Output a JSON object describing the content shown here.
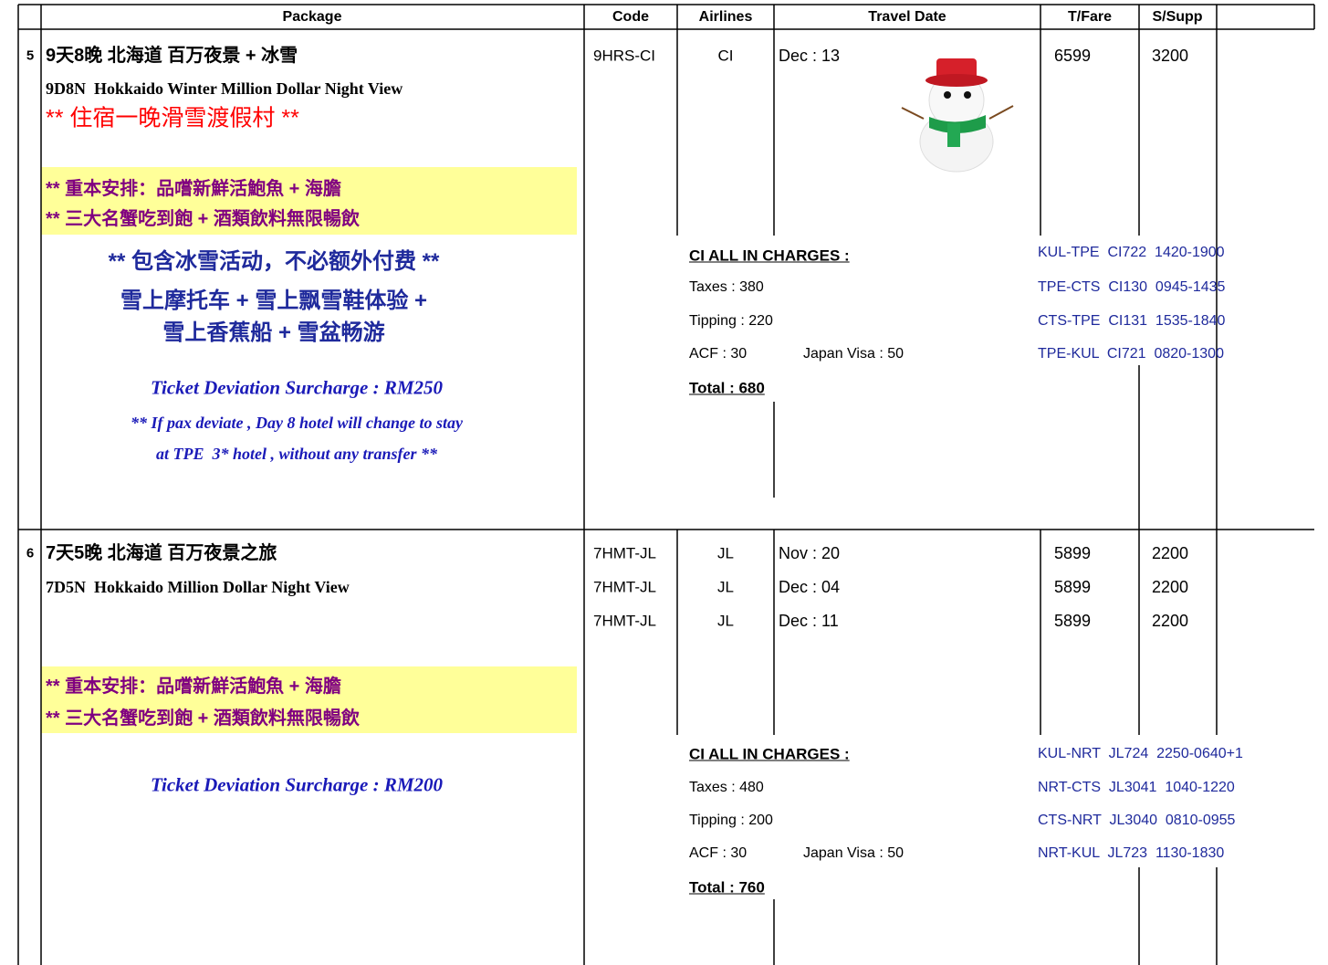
{
  "table": {
    "header": [
      "Package",
      "Code",
      "Airlines",
      "Travel Date",
      "T/Fare",
      "S/Supp"
    ],
    "rows": [
      {
        "no": "5",
        "title_cn": "9天8晚 北海道 百万夜景 + 冰雪",
        "title_en": "9D8N  Hokkaido Winter Million Dollar Night View",
        "highlight": "** 住宿一晚滑雪渡假村 **",
        "special": [
          "** 重本安排：品嚐新鮮活鮑魚 + 海膽",
          "** 三大名蟹吃到飽 + 酒類飲料無限暢飲"
        ],
        "activities": [
          "** 包含冰雪活动，不必额外付费 **",
          "雪上摩托车 + 雪上飘雪鞋体验 +",
          "雪上香蕉船 + 雪盆畅游"
        ],
        "surcharge": "Ticket Deviation Surcharge : RM250",
        "deviation_note": [
          "** If pax deviate , Day 8 hotel will change to stay",
          "at TPE  3* hotel , without any transfer **"
        ],
        "departures": [
          {
            "code": "9HRS-CI",
            "airline": "CI",
            "date": "Dec : 13",
            "fare": 6599,
            "supp": 3200
          }
        ],
        "charges": {
          "heading": "CI ALL IN CHARGES :",
          "taxes": "Taxes : 380",
          "tipping": "Tipping : 220",
          "acf": "ACF : 30",
          "visa": "Japan Visa : 50",
          "total": "Total : 680"
        },
        "flights": [
          "KUL-TPE  CI722  1420-1900",
          "TPE-CTS  CI130  0945-1435",
          "CTS-TPE  CI131  1535-1840",
          "TPE-KUL  CI721  0820-1300"
        ]
      },
      {
        "no": "6",
        "title_cn": "7天5晚 北海道 百万夜景之旅",
        "title_en": "7D5N  Hokkaido Million Dollar Night View",
        "special": [
          "** 重本安排：品嚐新鮮活鮑魚 + 海膽",
          "** 三大名蟹吃到飽 + 酒類飲料無限暢飲"
        ],
        "surcharge": "Ticket Deviation Surcharge : RM200",
        "departures": [
          {
            "code": "7HMT-JL",
            "airline": "JL",
            "date": "Nov : 20",
            "fare": 5899,
            "supp": 2200
          },
          {
            "code": "7HMT-JL",
            "airline": "JL",
            "date": "Dec : 04",
            "fare": 5899,
            "supp": 2200
          },
          {
            "code": "7HMT-JL",
            "airline": "JL",
            "date": "Dec : 11",
            "fare": 5899,
            "supp": 2200
          }
        ],
        "charges": {
          "heading": "CI ALL IN CHARGES :",
          "taxes": "Taxes : 480",
          "tipping": "Tipping : 200",
          "acf": "ACF : 30",
          "visa": "Japan Visa : 50",
          "total": "Total : 760"
        },
        "flights": [
          "KUL-NRT  JL724  2250-0640+1",
          "NRT-CTS  JL3041  1040-1220",
          "CTS-NRT  JL3040  0810-0955",
          "NRT-KUL  JL723  1130-1830"
        ]
      }
    ]
  }
}
